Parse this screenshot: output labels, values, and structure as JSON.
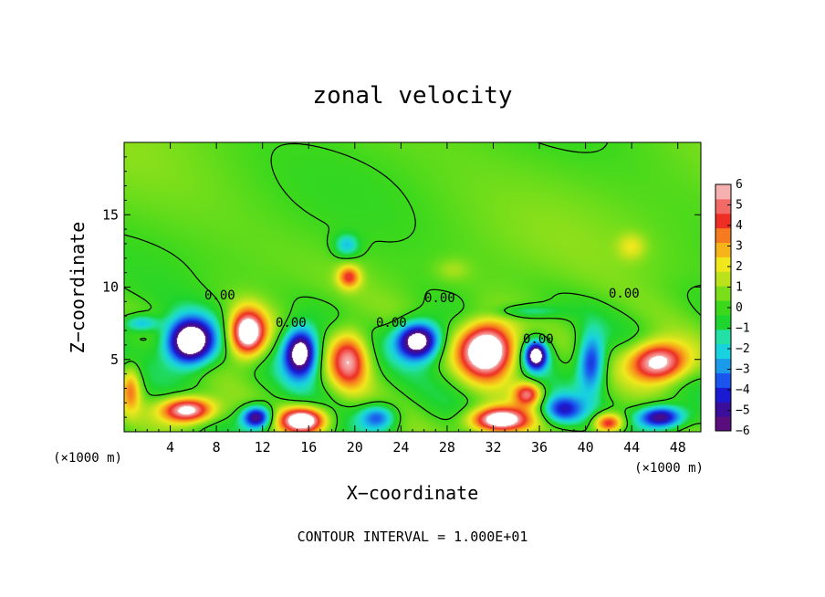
{
  "chart_data": {
    "type": "heatmap",
    "title": "zonal velocity",
    "xlabel": "X−coordinate",
    "ylabel": "Z−coordinate",
    "x_unit_label": "(×1000 m)",
    "z_unit_label": "(×1000 m)",
    "xlim": [
      0,
      50
    ],
    "ylim": [
      0,
      20
    ],
    "x_ticks": [
      4,
      8,
      12,
      16,
      20,
      24,
      28,
      32,
      36,
      40,
      44,
      48
    ],
    "y_ticks": [
      5,
      10,
      15
    ],
    "colorbar": {
      "ticks": [
        6,
        5,
        4,
        3,
        2,
        1,
        0,
        -1,
        -2,
        -3,
        -4,
        -5,
        -6
      ],
      "range": [
        -6,
        6
      ],
      "colors": [
        "#5a0d7d",
        "#3a0d9a",
        "#1a1ad2",
        "#1a55ee",
        "#1a9ae8",
        "#18d2e0",
        "#22e0a6",
        "#1ed42e",
        "#3cd81c",
        "#7ade1a",
        "#bce21c",
        "#f0e81c",
        "#f6b41a",
        "#f67a1e",
        "#ee2e24",
        "#f26a66",
        "#f6b0b0"
      ]
    },
    "contour_labels": [
      "0.00",
      "0.00",
      "0.00",
      "0.00",
      "0.00",
      "0.00"
    ],
    "footer": "CONTOUR INTERVAL = 1.000E+01",
    "features": [
      {
        "sign": "neg",
        "x": 5.7,
        "z": 6.2,
        "amp": 9.0,
        "sx": 2.1,
        "sz": 1.6
      },
      {
        "sign": "pos",
        "x": 10.7,
        "z": 6.8,
        "amp": 8.5,
        "sx": 1.6,
        "sz": 1.6
      },
      {
        "sign": "neg",
        "x": 15.3,
        "z": 5.5,
        "amp": 8.0,
        "sx": 1.5,
        "sz": 1.7
      },
      {
        "sign": "pos",
        "x": 19.5,
        "z": 5.0,
        "amp": 5.5,
        "sx": 1.7,
        "sz": 2.0
      },
      {
        "sign": "neg",
        "x": 25.5,
        "z": 6.3,
        "amp": 8.0,
        "sx": 1.9,
        "sz": 1.3
      },
      {
        "sign": "pos",
        "x": 31.5,
        "z": 5.7,
        "amp": 9.0,
        "sx": 2.4,
        "sz": 1.9
      },
      {
        "sign": "pos",
        "x": 35.0,
        "z": 2.6,
        "amp": 5.0,
        "sx": 1.2,
        "sz": 0.8
      },
      {
        "sign": "neg",
        "x": 35.7,
        "z": 5.3,
        "amp": 7.5,
        "sx": 1.0,
        "sz": 1.0
      },
      {
        "sign": "neg",
        "x": 40.5,
        "z": 4.8,
        "amp": 5.0,
        "sx": 1.2,
        "sz": 2.0
      },
      {
        "sign": "pos",
        "x": 46.3,
        "z": 4.8,
        "amp": 7.5,
        "sx": 2.6,
        "sz": 1.4
      },
      {
        "sign": "pos",
        "x": 5.5,
        "z": 1.5,
        "amp": 7.5,
        "sx": 2.3,
        "sz": 0.9
      },
      {
        "sign": "neg",
        "x": 11.5,
        "z": 1.0,
        "amp": 6.5,
        "sx": 1.3,
        "sz": 0.8
      },
      {
        "sign": "pos",
        "x": 15.5,
        "z": 0.8,
        "amp": 8.0,
        "sx": 2.0,
        "sz": 0.9
      },
      {
        "sign": "neg",
        "x": 22.0,
        "z": 1.0,
        "amp": 4.0,
        "sx": 1.6,
        "sz": 0.9
      },
      {
        "sign": "pos",
        "x": 32.5,
        "z": 0.8,
        "amp": 8.0,
        "sx": 2.6,
        "sz": 0.9
      },
      {
        "sign": "neg",
        "x": 38.0,
        "z": 1.5,
        "amp": 4.5,
        "sx": 1.8,
        "sz": 1.0
      },
      {
        "sign": "pos",
        "x": 42.0,
        "z": 0.6,
        "amp": 5.5,
        "sx": 1.3,
        "sz": 0.7
      },
      {
        "sign": "neg",
        "x": 46.5,
        "z": 1.0,
        "amp": 6.5,
        "sx": 2.0,
        "sz": 0.8
      },
      {
        "sign": "pos",
        "x": 19.5,
        "z": 10.7,
        "amp": 4.0,
        "sx": 1.0,
        "sz": 0.8
      },
      {
        "sign": "neg",
        "x": 19.3,
        "z": 12.9,
        "amp": 2.6,
        "sx": 1.1,
        "sz": 0.8
      },
      {
        "sign": "pos",
        "x": 0.6,
        "z": 3.0,
        "amp": 3.5,
        "sx": 0.9,
        "sz": 1.6
      },
      {
        "sign": "neg",
        "x": 1.5,
        "z": 7.5,
        "amp": 3.0,
        "sx": 1.5,
        "sz": 0.6
      },
      {
        "sign": "pos",
        "x": 44.0,
        "z": 12.8,
        "amp": 1.6,
        "sx": 1.2,
        "sz": 0.9
      },
      {
        "sign": "pos",
        "x": 28.5,
        "z": 11.2,
        "amp": 1.0,
        "sx": 1.5,
        "sz": 0.8
      },
      {
        "sign": "neg",
        "x": 35.0,
        "z": 8.3,
        "amp": 2.0,
        "sx": 3.0,
        "sz": 0.5
      }
    ]
  }
}
